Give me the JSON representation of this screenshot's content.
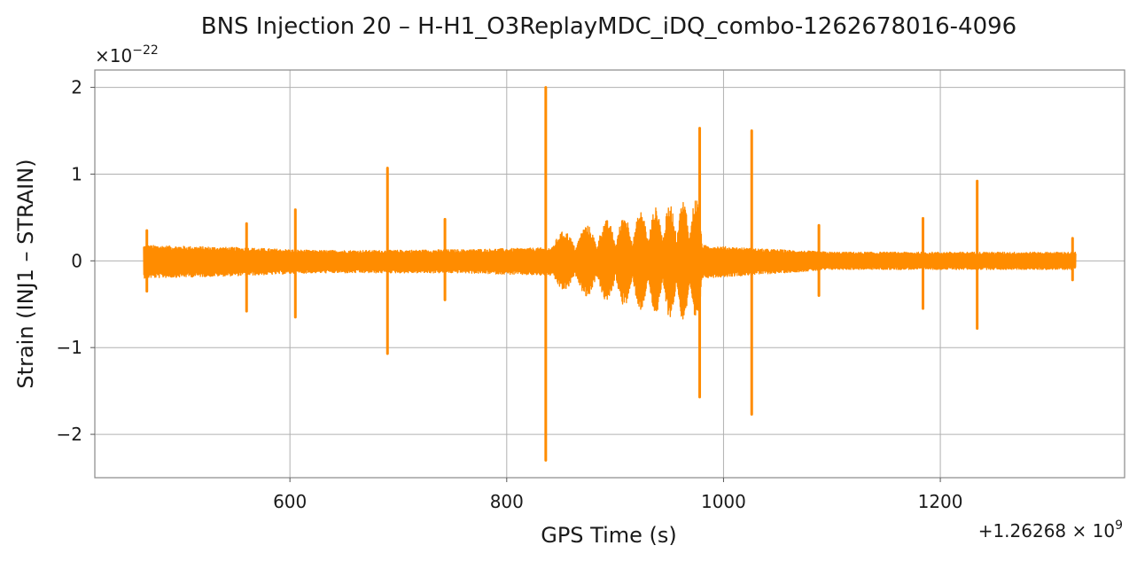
{
  "chart_data": {
    "type": "line",
    "title": "BNS Injection 20 – H-H1_O3ReplayMDC_iDQ_combo-1262678016-4096",
    "xlabel": "GPS Time (s)",
    "ylabel": "Strain (INJ1 – STRAIN)",
    "x_offset_base": "+1.26268",
    "x_offset_exp": "9",
    "y_scale_base": "×10",
    "y_scale_exp": "−22",
    "xlim": [
      420,
      1370
    ],
    "ylim": [
      -2.5,
      2.2
    ],
    "x_ticks": [
      600,
      800,
      1000,
      1200
    ],
    "x_tick_labels": [
      "600",
      "800",
      "1000",
      "1200"
    ],
    "y_ticks": [
      2,
      1,
      0,
      -1,
      -2
    ],
    "y_tick_labels": [
      "2",
      "1",
      "0",
      "−1",
      "−2"
    ],
    "grid": true,
    "series_color": "#ff8c00",
    "x_range": [
      465,
      1325
    ],
    "baseline_envelope": [
      {
        "x": 465,
        "upper": 0.18,
        "lower": -0.2
      },
      {
        "x": 560,
        "upper": 0.15,
        "lower": -0.17
      },
      {
        "x": 620,
        "upper": 0.12,
        "lower": -0.14
      },
      {
        "x": 680,
        "upper": 0.12,
        "lower": -0.14
      },
      {
        "x": 760,
        "upper": 0.13,
        "lower": -0.14
      },
      {
        "x": 835,
        "upper": 0.15,
        "lower": -0.17
      },
      {
        "x": 980,
        "upper": 0.18,
        "lower": -0.2
      },
      {
        "x": 1030,
        "upper": 0.14,
        "lower": -0.16
      },
      {
        "x": 1100,
        "upper": 0.1,
        "lower": -0.1
      },
      {
        "x": 1200,
        "upper": 0.1,
        "lower": -0.1
      },
      {
        "x": 1325,
        "upper": 0.1,
        "lower": -0.1
      }
    ],
    "chirp": {
      "x_start": 840,
      "x_end": 980,
      "peak_upper_start": 0.3,
      "peak_upper_end": 0.75,
      "peak_lower_start": -0.3,
      "peak_lower_end": -0.75,
      "cycles": 9
    },
    "spikes": [
      {
        "x": 468,
        "max": 0.35,
        "min": -0.35
      },
      {
        "x": 560,
        "max": 0.43,
        "min": -0.58
      },
      {
        "x": 605,
        "max": 0.59,
        "min": -0.65
      },
      {
        "x": 690,
        "max": 1.07,
        "min": -1.07
      },
      {
        "x": 743,
        "max": 0.48,
        "min": -0.45
      },
      {
        "x": 836,
        "max": 2.0,
        "min": -2.3
      },
      {
        "x": 978,
        "max": 1.53,
        "min": -1.57
      },
      {
        "x": 1026,
        "max": 1.5,
        "min": -1.77
      },
      {
        "x": 1088,
        "max": 0.41,
        "min": -0.4
      },
      {
        "x": 1184,
        "max": 0.49,
        "min": -0.55
      },
      {
        "x": 1234,
        "max": 0.92,
        "min": -0.78
      },
      {
        "x": 1322,
        "max": 0.26,
        "min": -0.22
      }
    ]
  }
}
